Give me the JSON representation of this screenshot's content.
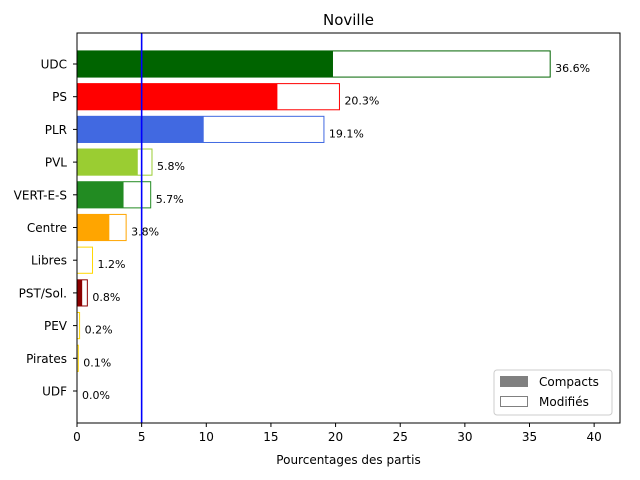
{
  "chart_data": {
    "type": "bar",
    "orientation": "horizontal",
    "title": "Noville",
    "xlabel": "Pourcentages des partis",
    "ylabel": "",
    "xlim": [
      0,
      42
    ],
    "xticks": [
      0,
      5,
      10,
      15,
      20,
      25,
      30,
      35,
      40
    ],
    "threshold": {
      "value": 5,
      "color": "#0000ff"
    },
    "legend": {
      "placement": "bottom-right",
      "entries": [
        {
          "label": "Compacts",
          "style": "filled",
          "color": "#808080"
        },
        {
          "label": "Modifiés",
          "style": "outline",
          "color": "#808080"
        }
      ]
    },
    "categories": [
      "UDC",
      "PS",
      "PLR",
      "PVL",
      "VERT-E-S",
      "Centre",
      "Libres",
      "PST/Sol.",
      "PEV",
      "Pirates",
      "UDF"
    ],
    "series": [
      {
        "name": "Compacts",
        "values": [
          19.8,
          15.5,
          9.8,
          4.7,
          3.6,
          2.5,
          0.0,
          0.4,
          0.0,
          0.0,
          0.0
        ]
      },
      {
        "name": "Modifiés",
        "values": [
          36.6,
          20.3,
          19.1,
          5.8,
          5.7,
          3.8,
          1.2,
          0.8,
          0.2,
          0.1,
          0.0
        ]
      }
    ],
    "labels": [
      "36.6%",
      "20.3%",
      "19.1%",
      "5.8%",
      "5.7%",
      "3.8%",
      "1.2%",
      "0.8%",
      "0.2%",
      "0.1%",
      "0.0%"
    ],
    "colors": [
      "#006400",
      "#ff0000",
      "#4169e1",
      "#9acd32",
      "#228b22",
      "#ffa500",
      "#ffd700",
      "#8b0000",
      "#ffd700",
      "#ffd700",
      "#ffd700"
    ]
  }
}
